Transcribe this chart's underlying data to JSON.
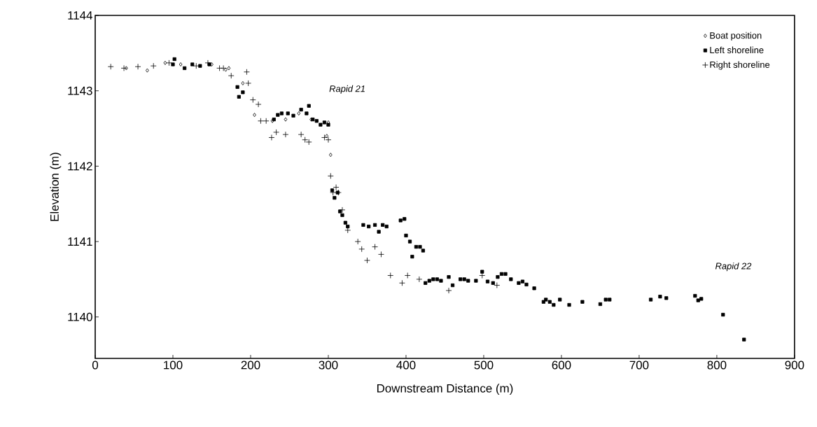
{
  "chart_data": {
    "type": "scatter",
    "xlabel": "Downstream Distance (m)",
    "ylabel": "Elevation (m)",
    "xlim": [
      0,
      900
    ],
    "xticks": [
      0,
      100,
      200,
      300,
      400,
      500,
      600,
      700,
      800,
      900
    ],
    "ylim": [
      1139.45,
      1144
    ],
    "yticks": [
      1140,
      1141,
      1142,
      1143,
      1144
    ],
    "grid": false,
    "legend": "top right",
    "annotations": [
      "Rapid 21",
      "Rapid 22"
    ],
    "series": [
      {
        "name": "Boat position",
        "color": "#000000",
        "marker": "diamond",
        "x": [
          40,
          67,
          90,
          110,
          150,
          168,
          172,
          190,
          205,
          228,
          245,
          262,
          278,
          298,
          303,
          300
        ],
        "values": [
          1143.3,
          1143.27,
          1143.37,
          1143.35,
          1143.35,
          1143.28,
          1143.3,
          1143.1,
          1142.68,
          1142.6,
          1142.62,
          1142.7,
          1142.62,
          1142.4,
          1142.15,
          1142.58
        ]
      },
      {
        "name": "Left shoreline",
        "color": "#000000",
        "marker": "square",
        "x": [
          100,
          102,
          115,
          125,
          135,
          147,
          183,
          185,
          190,
          230,
          235,
          240,
          248,
          255,
          265,
          272,
          275,
          280,
          285,
          290,
          295,
          300,
          305,
          308,
          312,
          315,
          318,
          322,
          325,
          345,
          352,
          360,
          365,
          370,
          375,
          393,
          398,
          400,
          405,
          408,
          413,
          418,
          422,
          425,
          430,
          435,
          440,
          445,
          455,
          460,
          470,
          475,
          480,
          490,
          498,
          505,
          512,
          518,
          523,
          528,
          535,
          545,
          550,
          555,
          565,
          577,
          580,
          585,
          590,
          598,
          610,
          627,
          650,
          657,
          662,
          715,
          727,
          735,
          772,
          776,
          780,
          808,
          835
        ],
        "values": [
          1143.35,
          1143.42,
          1143.3,
          1143.35,
          1143.33,
          1143.35,
          1143.05,
          1142.92,
          1142.98,
          1142.62,
          1142.68,
          1142.7,
          1142.7,
          1142.67,
          1142.75,
          1142.7,
          1142.8,
          1142.62,
          1142.6,
          1142.55,
          1142.58,
          1142.55,
          1141.68,
          1141.58,
          1141.65,
          1141.4,
          1141.35,
          1141.25,
          1141.2,
          1141.22,
          1141.2,
          1141.22,
          1141.13,
          1141.22,
          1141.2,
          1141.28,
          1141.3,
          1141.08,
          1141.0,
          1140.8,
          1140.93,
          1140.93,
          1140.88,
          1140.45,
          1140.48,
          1140.5,
          1140.5,
          1140.48,
          1140.53,
          1140.42,
          1140.5,
          1140.5,
          1140.48,
          1140.48,
          1140.6,
          1140.47,
          1140.45,
          1140.53,
          1140.57,
          1140.57,
          1140.5,
          1140.45,
          1140.47,
          1140.43,
          1140.38,
          1140.2,
          1140.23,
          1140.2,
          1140.16,
          1140.23,
          1140.16,
          1140.2,
          1140.17,
          1140.23,
          1140.23,
          1140.23,
          1140.27,
          1140.25,
          1140.28,
          1140.22,
          1140.24,
          1140.03,
          1139.7
        ]
      },
      {
        "name": "Right shoreline",
        "color": "#000000",
        "marker": "cross",
        "x": [
          20,
          37,
          55,
          75,
          95,
          130,
          145,
          160,
          165,
          175,
          195,
          197,
          203,
          210,
          213,
          220,
          227,
          233,
          245,
          265,
          270,
          275,
          295,
          300,
          303,
          306,
          310,
          313,
          318,
          325,
          338,
          343,
          350,
          360,
          368,
          380,
          395,
          402,
          417,
          455,
          498,
          517
        ],
        "values": [
          1143.32,
          1143.3,
          1143.32,
          1143.33,
          1143.37,
          1143.33,
          1143.37,
          1143.3,
          1143.3,
          1143.2,
          1143.25,
          1143.1,
          1142.88,
          1142.82,
          1142.6,
          1142.6,
          1142.38,
          1142.45,
          1142.42,
          1142.42,
          1142.35,
          1142.32,
          1142.38,
          1142.35,
          1141.87,
          1141.65,
          1141.72,
          1141.65,
          1141.42,
          1141.15,
          1141.0,
          1140.9,
          1140.75,
          1140.93,
          1140.83,
          1140.55,
          1140.45,
          1140.55,
          1140.5,
          1140.35,
          1140.55,
          1140.42
        ]
      }
    ]
  }
}
